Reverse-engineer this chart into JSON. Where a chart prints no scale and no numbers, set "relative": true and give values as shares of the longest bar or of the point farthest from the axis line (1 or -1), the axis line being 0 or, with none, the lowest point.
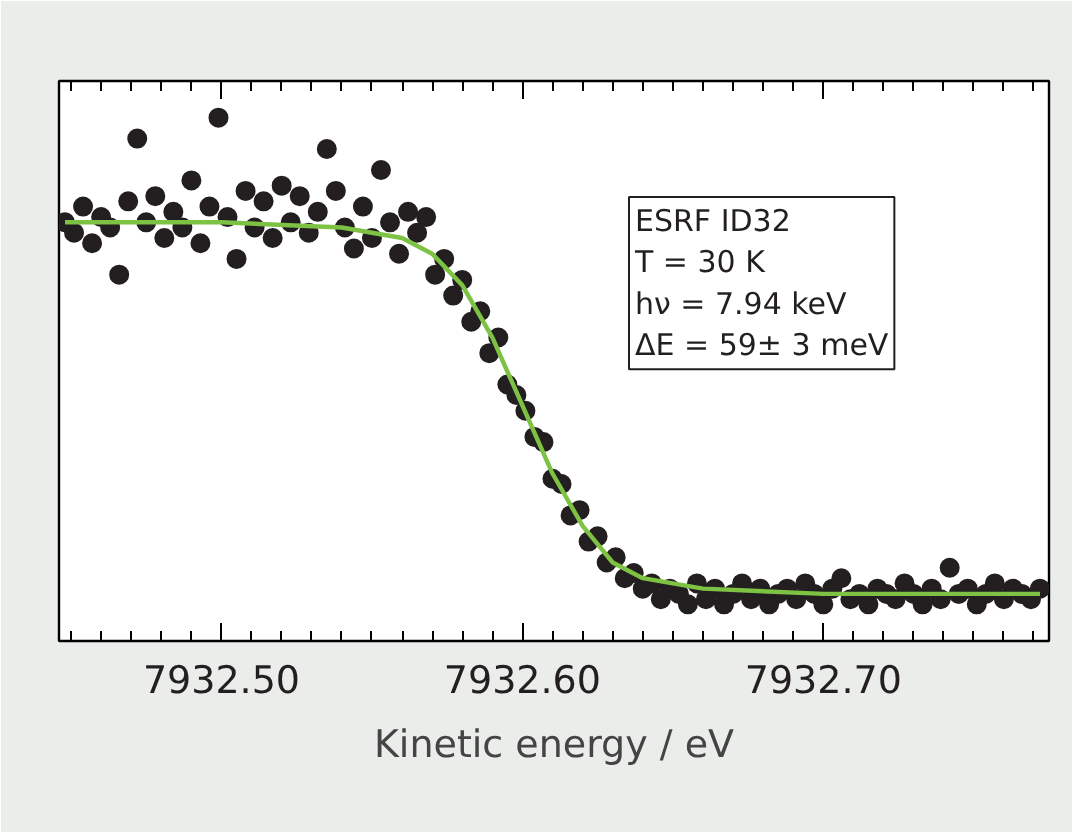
{
  "chart_data": {
    "type": "scatter",
    "relative": true,
    "xlabel": "Kinetic energy / eV",
    "xlim": [
      7932.446,
      7932.775
    ],
    "xticks": [
      {
        "value": 7932.5,
        "label": "7932.50"
      },
      {
        "value": 7932.6,
        "label": "7932.60"
      },
      {
        "value": 7932.7,
        "label": "7932.70"
      }
    ],
    "grid": false,
    "marker": "circle",
    "annotations": [
      "ESRF ID32",
      "T = 30 K",
      "hν = 7.94 keV",
      "ΔE = 59± 3 meV"
    ],
    "series": [
      {
        "color": "#231f20",
        "x": [
          7932.448,
          7932.451,
          7932.454,
          7932.457,
          7932.46,
          7932.463,
          7932.466,
          7932.469,
          7932.472,
          7932.475,
          7932.478,
          7932.481,
          7932.484,
          7932.487,
          7932.49,
          7932.493,
          7932.496,
          7932.499,
          7932.502,
          7932.505,
          7932.508,
          7932.511,
          7932.514,
          7932.517,
          7932.52,
          7932.523,
          7932.526,
          7932.529,
          7932.532,
          7932.535,
          7932.538,
          7932.541,
          7932.544,
          7932.547,
          7932.55,
          7932.553,
          7932.556,
          7932.559,
          7932.562,
          7932.565,
          7932.568,
          7932.571,
          7932.574,
          7932.577,
          7932.58,
          7932.583,
          7932.586,
          7932.589,
          7932.592,
          7932.595,
          7932.598,
          7932.601,
          7932.604,
          7932.607,
          7932.61,
          7932.613,
          7932.616,
          7932.619,
          7932.622,
          7932.625,
          7932.628,
          7932.631,
          7932.634,
          7932.637,
          7932.64,
          7932.643,
          7932.646,
          7932.649,
          7932.652,
          7932.655,
          7932.658,
          7932.661,
          7932.664,
          7932.667,
          7932.67,
          7932.673,
          7932.676,
          7932.679,
          7932.682,
          7932.685,
          7932.688,
          7932.691,
          7932.694,
          7932.697,
          7932.7,
          7932.703,
          7932.706,
          7932.709,
          7932.712,
          7932.715,
          7932.718,
          7932.721,
          7932.724,
          7932.727,
          7932.73,
          7932.733,
          7932.736,
          7932.739,
          7932.742,
          7932.745,
          7932.748,
          7932.751,
          7932.754,
          7932.757,
          7932.76,
          7932.763,
          7932.766,
          7932.769,
          7932.772
        ],
        "values": [
          0.8,
          0.78,
          0.83,
          0.76,
          0.81,
          0.79,
          0.7,
          0.84,
          0.96,
          0.8,
          0.85,
          0.77,
          0.82,
          0.79,
          0.88,
          0.76,
          0.83,
          1.0,
          0.81,
          0.73,
          0.86,
          0.79,
          0.84,
          0.77,
          0.87,
          0.8,
          0.85,
          0.78,
          0.82,
          0.94,
          0.86,
          0.79,
          0.75,
          0.83,
          0.77,
          0.9,
          0.8,
          0.74,
          0.82,
          0.78,
          0.81,
          0.7,
          0.73,
          0.66,
          0.69,
          0.61,
          0.63,
          0.55,
          0.58,
          0.49,
          0.47,
          0.44,
          0.39,
          0.38,
          0.31,
          0.3,
          0.24,
          0.25,
          0.19,
          0.2,
          0.15,
          0.16,
          0.12,
          0.13,
          0.1,
          0.11,
          0.08,
          0.1,
          0.09,
          0.07,
          0.11,
          0.08,
          0.1,
          0.07,
          0.09,
          0.11,
          0.08,
          0.1,
          0.07,
          0.09,
          0.1,
          0.08,
          0.11,
          0.09,
          0.07,
          0.1,
          0.12,
          0.08,
          0.09,
          0.07,
          0.1,
          0.09,
          0.08,
          0.11,
          0.09,
          0.07,
          0.1,
          0.08,
          0.14,
          0.09,
          0.1,
          0.07,
          0.09,
          0.11,
          0.08,
          0.1,
          0.09,
          0.08,
          0.1
        ]
      },
      {
        "type": "line",
        "color": "#7dc242",
        "marker": "none",
        "x": [
          7932.448,
          7932.5,
          7932.54,
          7932.56,
          7932.57,
          7932.58,
          7932.59,
          7932.6,
          7932.61,
          7932.62,
          7932.63,
          7932.64,
          7932.66,
          7932.7,
          7932.772
        ],
        "values": [
          0.8,
          0.8,
          0.79,
          0.77,
          0.74,
          0.68,
          0.58,
          0.45,
          0.32,
          0.22,
          0.15,
          0.12,
          0.1,
          0.09,
          0.09
        ]
      }
    ]
  }
}
